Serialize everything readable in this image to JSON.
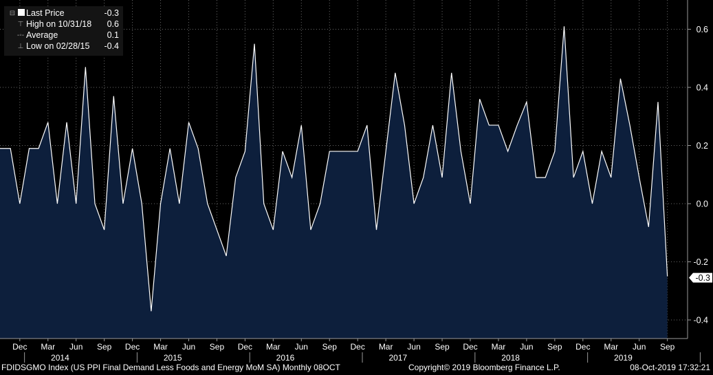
{
  "legend": {
    "last_price": {
      "label": "Last Price",
      "value": "-0.3"
    },
    "high": {
      "label": "High on 10/31/18",
      "value": "0.6"
    },
    "average": {
      "label": "Average",
      "value": "0.1"
    },
    "low": {
      "label": "Low on 02/28/15",
      "value": "-0.4"
    }
  },
  "last_value_badge": "-0.3",
  "footer": {
    "ticker": "FDIDSGMO Index (US PPI Final Demand Less Foods and Energy MoM SA)  Monthly 08OCT",
    "copyright": "Copyright© 2019 Bloomberg Finance L.P.",
    "timestamp": "08-Oct-2019 17:32:21"
  },
  "colors": {
    "background": "#000000",
    "area_fill": "#0d1f3c",
    "line": "#ffffff",
    "grid": "#6a6a6a"
  },
  "chart_data": {
    "type": "area",
    "ylim": [
      -0.45,
      0.65
    ],
    "yticks": [
      0.6,
      0.4,
      0.2,
      0.0,
      -0.2,
      -0.4
    ],
    "ytick_labels": [
      "0.6",
      "0.4",
      "0.2",
      "0.0",
      "-0.2",
      "-0.4"
    ],
    "y_axis_side": "right",
    "grid": true,
    "month_labels": [
      "Dec",
      "Mar",
      "Jun",
      "Sep",
      "Dec",
      "Mar",
      "Jun",
      "Sep",
      "Dec",
      "Mar",
      "Jun",
      "Sep",
      "Dec",
      "Mar",
      "Jun",
      "Sep",
      "Dec",
      "Mar",
      "Jun",
      "Sep",
      "Dec",
      "Mar",
      "Jun",
      "Sep"
    ],
    "year_labels": [
      "2014",
      "2015",
      "2016",
      "2017",
      "2018",
      "2019"
    ],
    "x_start": "2013-10",
    "x_end": "2019-09",
    "values": [
      0.19,
      0.19,
      0.0,
      0.19,
      0.19,
      0.28,
      0.0,
      0.28,
      0.0,
      0.47,
      0.0,
      -0.09,
      0.37,
      0.0,
      0.19,
      0.0,
      -0.37,
      0.0,
      0.19,
      0.0,
      0.28,
      0.19,
      0.0,
      -0.09,
      -0.18,
      0.09,
      0.18,
      0.55,
      0.0,
      -0.09,
      0.18,
      0.09,
      0.27,
      -0.09,
      0.0,
      0.18,
      0.18,
      0.18,
      0.18,
      0.27,
      -0.09,
      0.18,
      0.45,
      0.27,
      0.0,
      0.09,
      0.27,
      0.09,
      0.45,
      0.18,
      0.0,
      0.36,
      0.27,
      0.27,
      0.18,
      0.27,
      0.35,
      0.09,
      0.09,
      0.18,
      0.61,
      0.09,
      0.18,
      0.0,
      0.18,
      0.09,
      0.43,
      0.27,
      0.09,
      -0.08,
      0.35,
      -0.25
    ]
  }
}
